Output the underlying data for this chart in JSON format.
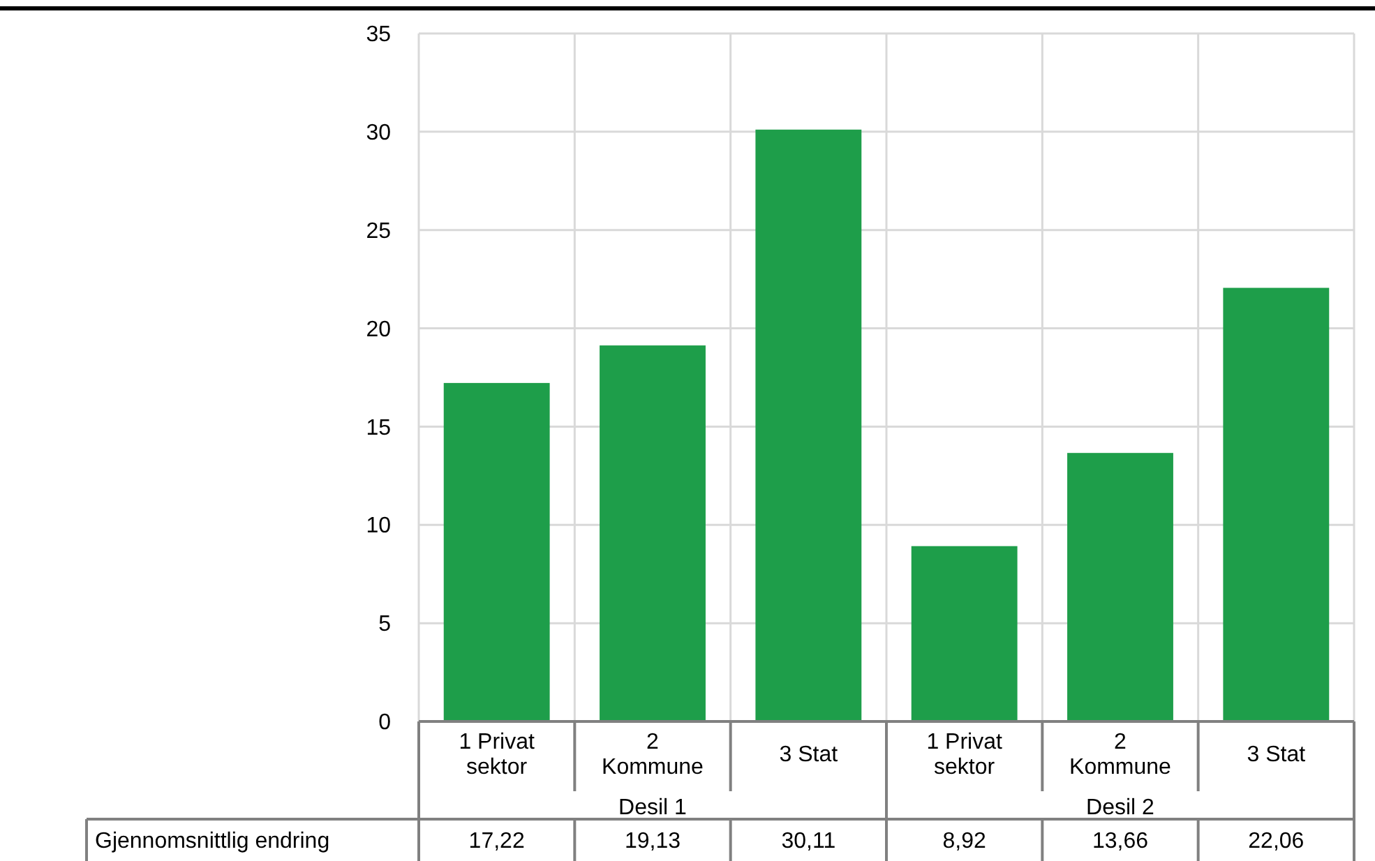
{
  "chart_data": {
    "type": "bar",
    "categories": [
      "1 Privat sektor",
      "2 Kommune",
      "3 Stat",
      "1 Privat sektor",
      "2 Kommune",
      "3 Stat"
    ],
    "series": [
      {
        "name": "Gjennomsnittlig endring",
        "color": "#1e9e4a",
        "values": [
          17.22,
          19.13,
          30.11,
          8.92,
          13.66,
          22.06
        ],
        "value_labels": [
          "17,22",
          "19,13",
          "30,11",
          "8,92",
          "13,66",
          "22,06"
        ]
      }
    ],
    "annotations": [
      "Desil 1",
      "Desil 2"
    ],
    "ylim": [
      0,
      35
    ],
    "yticks": [
      0,
      5,
      10,
      15,
      20,
      25,
      30,
      35
    ],
    "grid": true,
    "legend": false
  }
}
